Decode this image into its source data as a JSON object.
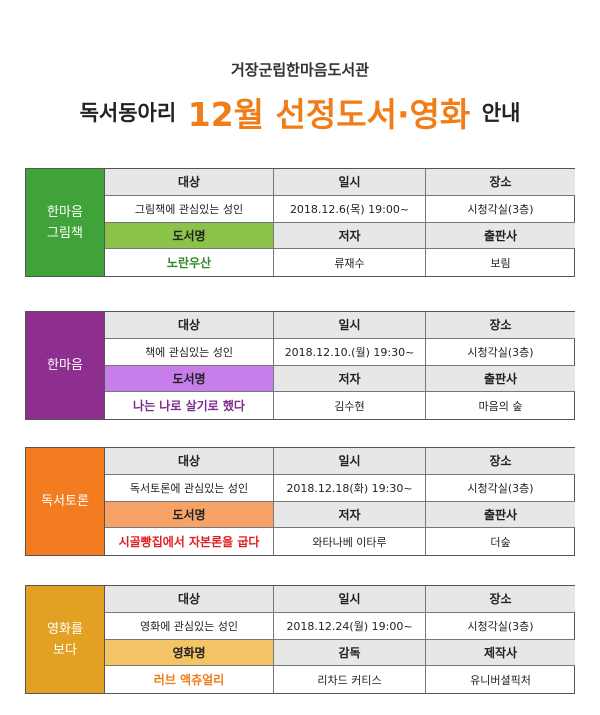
{
  "library_name": "거장군립한마음도서관",
  "title": {
    "prefix": "독서동아리",
    "highlight": "12월 선정도서·영화",
    "suffix": "안내"
  },
  "clubs": [
    {
      "name": "한마음\n그림책",
      "color": "#3fa33a",
      "accent": "#8bc34a",
      "title_color": "#2e8b25",
      "headers": [
        "대상",
        "일시",
        "장소"
      ],
      "info": [
        "그림책에 관심있는 성인",
        "2018.12.6(목) 19:00~",
        "시청각실(3층)"
      ],
      "headers2": [
        "도서명",
        "저자",
        "출판사"
      ],
      "item": [
        "노란우산",
        "류재수",
        "보림"
      ]
    },
    {
      "name": "한마음",
      "color": "#8e2e8e",
      "accent": "#c77dea",
      "title_color": "#7b2d8b",
      "headers": [
        "대상",
        "일시",
        "장소"
      ],
      "info": [
        "책에 관심있는 성인",
        "2018.12.10.(월) 19:30~",
        "시청각실(3층)"
      ],
      "headers2": [
        "도서명",
        "저자",
        "출판사"
      ],
      "item": [
        "나는 나로 살기로 했다",
        "김수현",
        "마음의 숲"
      ]
    },
    {
      "name": "독서토론",
      "color": "#f47c20",
      "accent": "#f7a267",
      "title_color": "#e02020",
      "headers": [
        "대상",
        "일시",
        "장소"
      ],
      "info": [
        "독서토론에 관심있는 성인",
        "2018.12.18(화) 19:30~",
        "시청각실(3층)"
      ],
      "headers2": [
        "도서명",
        "저자",
        "출판사"
      ],
      "item": [
        "시골빵집에서 자본론을 굽다",
        "와타나베 이타루",
        "더숲"
      ]
    },
    {
      "name": "영화를\n보다",
      "color": "#e2a122",
      "accent": "#f3c567",
      "title_color": "#f07d18",
      "headers": [
        "대상",
        "일시",
        "장소"
      ],
      "info": [
        "영화에 관심있는 성인",
        "2018.12.24(월) 19:00~",
        "시청각실(3층)"
      ],
      "headers2": [
        "영화명",
        "감독",
        "제작사"
      ],
      "item": [
        "러브 액츄얼리",
        "리차드 커티스",
        "유니버셜픽처"
      ]
    }
  ]
}
